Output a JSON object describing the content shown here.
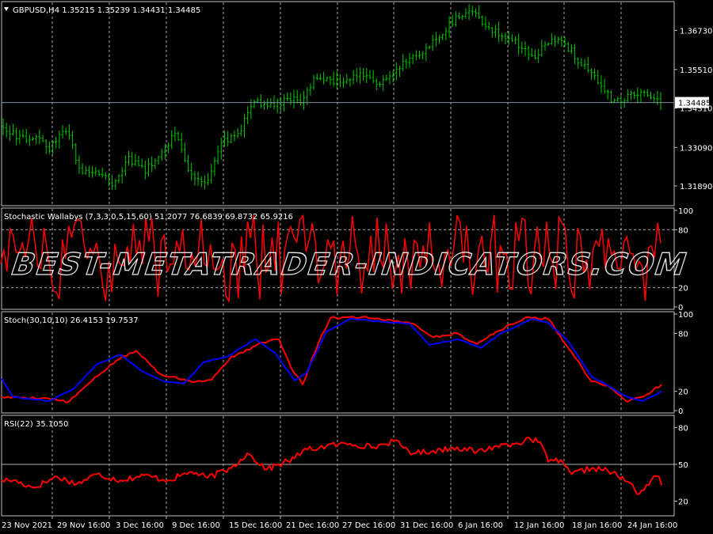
{
  "colors": {
    "background": "#000000",
    "frame": "#c0c0c0",
    "grid": "#c8c8c8",
    "candles": "#00c800",
    "red": "#ff0000",
    "blue": "#0000ff",
    "price_line": "#7f8fa6",
    "text": "#ffffff",
    "watermark": "#ffffff"
  },
  "watermark": "BEST-METATRADER-INDICATORS.COM",
  "x_labels": [
    "23 Nov 2021",
    "29 Nov 16:00",
    "3 Dec 16:00",
    "9 Dec 16:00",
    "15 Dec 16:00",
    "21 Dec 16:00",
    "27 Dec 16:00",
    "31 Dec 16:00",
    "6 Jan 16:00",
    "12 Jan 16:00",
    "18 Jan 16:00",
    "24 Jan 16:00"
  ],
  "chart_data": [
    {
      "type": "candlestick",
      "title": "GBPUSD,H4",
      "ohlc_readout": [
        "1.35215",
        "1.35239",
        "1.34431",
        "1.34485"
      ],
      "current_price": "1.34485",
      "y_ticks": [
        "1.36730",
        "1.35510",
        "1.34310",
        "1.33090",
        "1.31890"
      ],
      "ylim": [
        1.3135,
        1.3755
      ],
      "bars": 200,
      "close_anchors": [
        1.3375,
        1.334,
        1.3338,
        1.3305,
        1.3368,
        1.3225,
        1.3235,
        1.3195,
        1.3275,
        1.3235,
        1.3285,
        1.3355,
        1.3215,
        1.3205,
        1.3325,
        1.3345,
        1.3455,
        1.3435,
        1.3455,
        1.3455,
        1.3525,
        1.3515,
        1.3515,
        1.3535,
        1.3505,
        1.3555,
        1.3585,
        1.3615,
        1.3665,
        1.3715,
        1.3735,
        1.3675,
        1.3655,
        1.3625,
        1.3595,
        1.3645,
        1.3625,
        1.3565,
        1.3515,
        1.3445,
        1.3465,
        1.3485,
        1.3445
      ]
    },
    {
      "type": "line",
      "title": "Stochastic Wallabys (7,3,3,0,5,15,60) 51.2077 76.6839 69.8732 65.9216",
      "y_ticks": [
        "100",
        "80",
        "20",
        "0"
      ],
      "levels": [
        80,
        20
      ],
      "ylim": [
        0,
        100
      ],
      "series": [
        {
          "color": "#ff0000",
          "seed": 7,
          "points": 215,
          "range": [
            5,
            96
          ]
        }
      ]
    },
    {
      "type": "line",
      "title": "Stoch(30,10,10) 26.4153 19.7537",
      "y_ticks": [
        "100",
        "80",
        "20",
        "0"
      ],
      "ylim": [
        0,
        100
      ],
      "series": [
        {
          "color": "#ff0000",
          "x": [
            0,
            55,
            85,
            110,
            145,
            170,
            200,
            215,
            245,
            265,
            290,
            305,
            325,
            350,
            365,
            380,
            400,
            415,
            455,
            500,
            520,
            545,
            575,
            600,
            625,
            665,
            690,
            720,
            745,
            765,
            790,
            815,
            833
          ],
          "values": [
            14,
            13,
            9,
            28,
            52,
            62,
            38,
            35,
            30,
            32,
            56,
            60,
            70,
            74,
            45,
            27,
            70,
            96,
            97,
            93,
            90,
            76,
            80,
            69,
            82,
            97,
            95,
            60,
            30,
            26,
            9,
            17,
            27
          ]
        },
        {
          "color": "#0000ff",
          "x": [
            0,
            15,
            60,
            90,
            120,
            150,
            175,
            205,
            230,
            255,
            285,
            320,
            345,
            370,
            385,
            410,
            440,
            480,
            515,
            540,
            575,
            605,
            630,
            670,
            690,
            715,
            745,
            765,
            790,
            810,
            833
          ],
          "values": [
            33,
            14,
            10,
            22,
            48,
            58,
            42,
            30,
            28,
            50,
            56,
            74,
            60,
            31,
            39,
            82,
            95,
            92,
            90,
            68,
            74,
            65,
            80,
            95,
            91,
            72,
            35,
            26,
            14,
            10,
            20
          ]
        }
      ]
    },
    {
      "type": "line",
      "title": "RSI(22) 35.1050",
      "y_ticks": [
        "80",
        "50",
        "20"
      ],
      "levels": [
        50
      ],
      "ylim": [
        10,
        88
      ],
      "series": [
        {
          "color": "#ff0000",
          "x": [
            0,
            15,
            40,
            70,
            95,
            120,
            150,
            180,
            210,
            240,
            260,
            290,
            310,
            335,
            370,
            380,
            410,
            440,
            470,
            495,
            520,
            545,
            575,
            600,
            625,
            645,
            668,
            680,
            690,
            700,
            720,
            745,
            765,
            790,
            805,
            820,
            830,
            833
          ],
          "values": [
            37,
            37,
            31,
            40,
            34,
            42,
            37,
            41,
            37,
            44,
            39,
            47,
            59,
            46,
            55,
            61,
            65,
            67,
            64,
            69,
            59,
            61,
            64,
            60,
            65,
            67,
            70,
            68,
            52,
            55,
            42,
            47,
            45,
            36,
            26,
            37,
            40,
            33
          ]
        }
      ]
    }
  ]
}
